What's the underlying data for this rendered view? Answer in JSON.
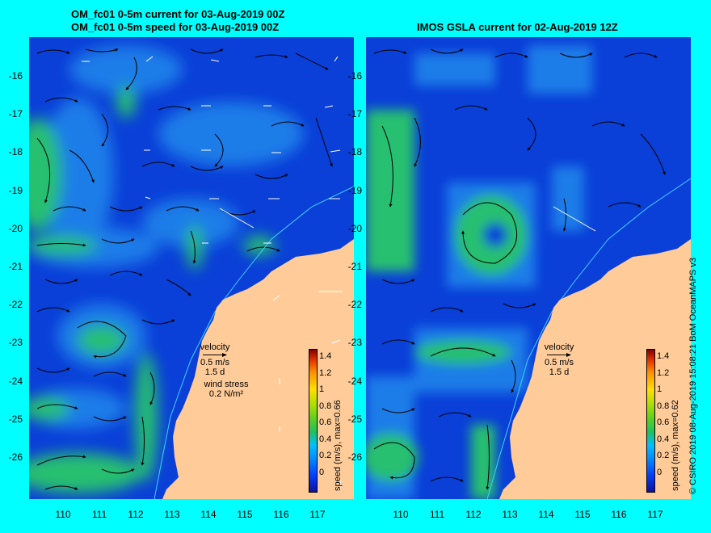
{
  "left_panel": {
    "title_line1": "OM_fc01 0-5m current for 03-Aug-2019 00Z",
    "title_line2": "OM_fc01 0-5m speed for 03-Aug-2019 00Z",
    "colorbar_label": "speed (m/s), max=0.66",
    "legend_velocity": "velocity",
    "legend_velocity_scale": "0.5 m/s",
    "legend_velocity_deg": "1.5 d",
    "legend_wind": "wind stress",
    "legend_wind_scale": "0.2 N/m²"
  },
  "right_panel": {
    "title": "IMOS GSLA current for 02-Aug-2019 12Z",
    "colorbar_label": "speed (m/s), max=0.62",
    "legend_velocity": "velocity",
    "legend_velocity_scale": "0.5 m/s",
    "legend_velocity_deg": "1.5 d"
  },
  "y_ticks": [
    "-16",
    "-17",
    "-18",
    "-19",
    "-20",
    "-21",
    "-22",
    "-23",
    "-24",
    "-25",
    "-26"
  ],
  "x_ticks": [
    "110",
    "111",
    "112",
    "113",
    "114",
    "115",
    "116",
    "117"
  ],
  "colorbar_ticks": [
    "1.4",
    "1.2",
    "1",
    "0.8",
    "0.6",
    "0.4",
    "0.2",
    "0"
  ],
  "credit": "© CSIRO 2019   08-Aug-2019 15:08:21 BoM OceanMAPS v3",
  "colors": {
    "background": "#00ffff",
    "ocean_low": "#0a3fd8",
    "ocean_mid": "#1f7de8",
    "current_fast": "#27c070",
    "land": "#ffcc99",
    "isobath": "#40d0ff"
  }
}
